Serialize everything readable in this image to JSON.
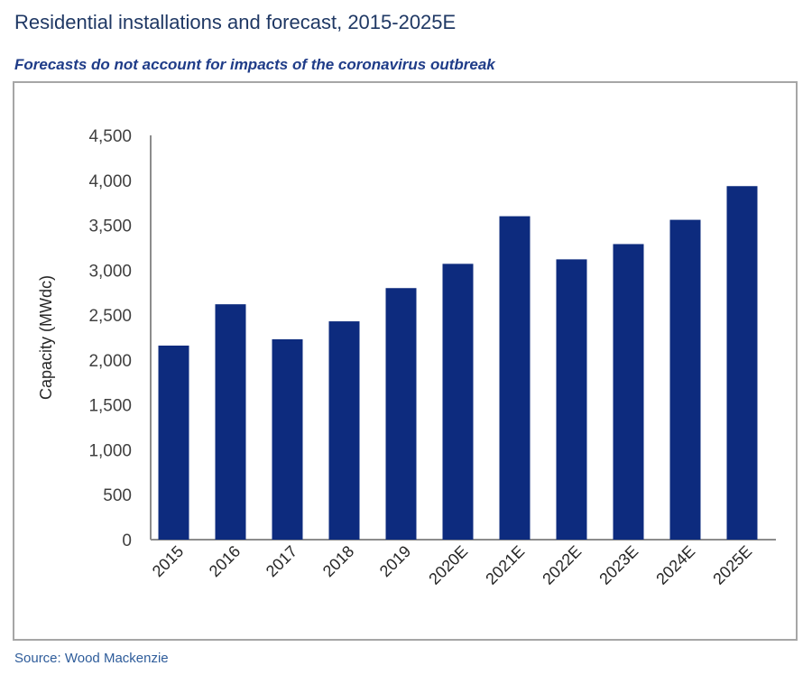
{
  "chart_data": {
    "type": "bar",
    "title": "Residential installations and forecast, 2015-2025E",
    "subtitle": "Forecasts do not account for impacts of the coronavirus outbreak",
    "xlabel": "",
    "ylabel": "Capacity (MWdc)",
    "ylim": [
      0,
      4500
    ],
    "yticks": [
      0,
      500,
      1000,
      1500,
      2000,
      2500,
      3000,
      3500,
      4000,
      4500
    ],
    "ytick_labels": [
      "0",
      "500",
      "1,000",
      "1,500",
      "2,000",
      "2,500",
      "3,000",
      "3,500",
      "4,000",
      "4,500"
    ],
    "categories": [
      "2015",
      "2016",
      "2017",
      "2018",
      "2019",
      "2020E",
      "2021E",
      "2022E",
      "2023E",
      "2024E",
      "2025E"
    ],
    "values": [
      2160,
      2620,
      2230,
      2430,
      2800,
      3070,
      3600,
      3120,
      3290,
      3560,
      3935
    ],
    "grid": false,
    "legend": null,
    "bar_color": "#0d2b7e",
    "source": "Source: Wood Mackenzie"
  }
}
